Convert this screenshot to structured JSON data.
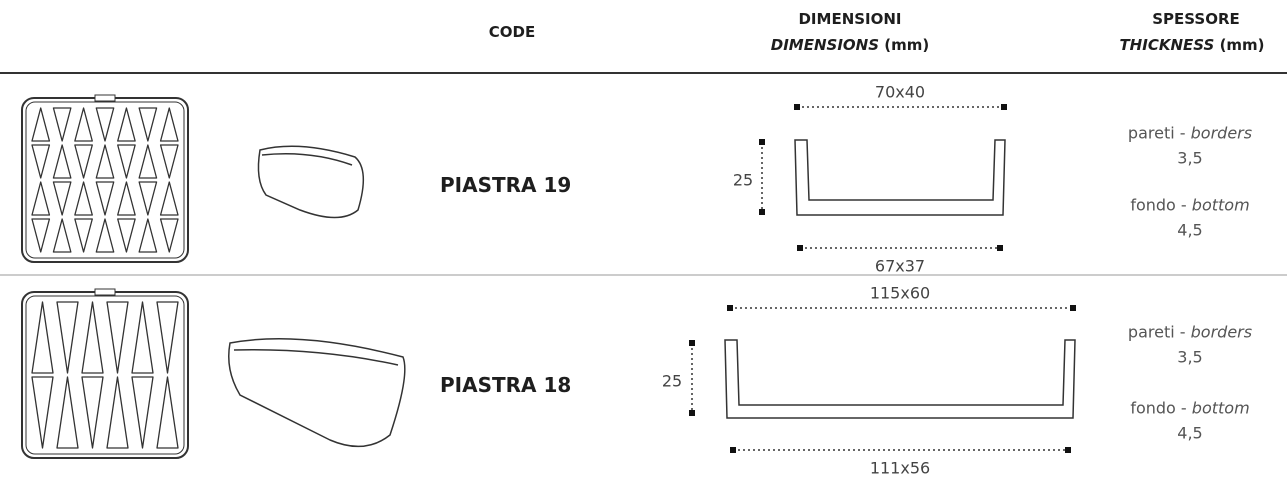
{
  "table": {
    "header": {
      "code": "CODE",
      "dimensions": [
        "DIMENSIONI",
        "DIMENSIONS",
        "(mm)"
      ],
      "thickness": [
        "SPESSORE",
        "THICKNESS",
        "(mm)"
      ]
    },
    "rows": [
      {
        "code": "PIASTRA 19",
        "top": "70x40",
        "height": "25",
        "bottom": "67x37",
        "walls_label": [
          "pareti -",
          "borders"
        ],
        "walls": "3,5",
        "base_label": [
          "fondo -",
          "bottom"
        ],
        "base": "4,5"
      },
      {
        "code": "PIASTRA 18",
        "top": "115x60",
        "height": "25",
        "bottom": "111x56",
        "walls_label": [
          "pareti -",
          "borders"
        ],
        "walls": "3,5",
        "base_label": [
          "fondo -",
          "bottom"
        ],
        "base": "4,5"
      }
    ]
  }
}
